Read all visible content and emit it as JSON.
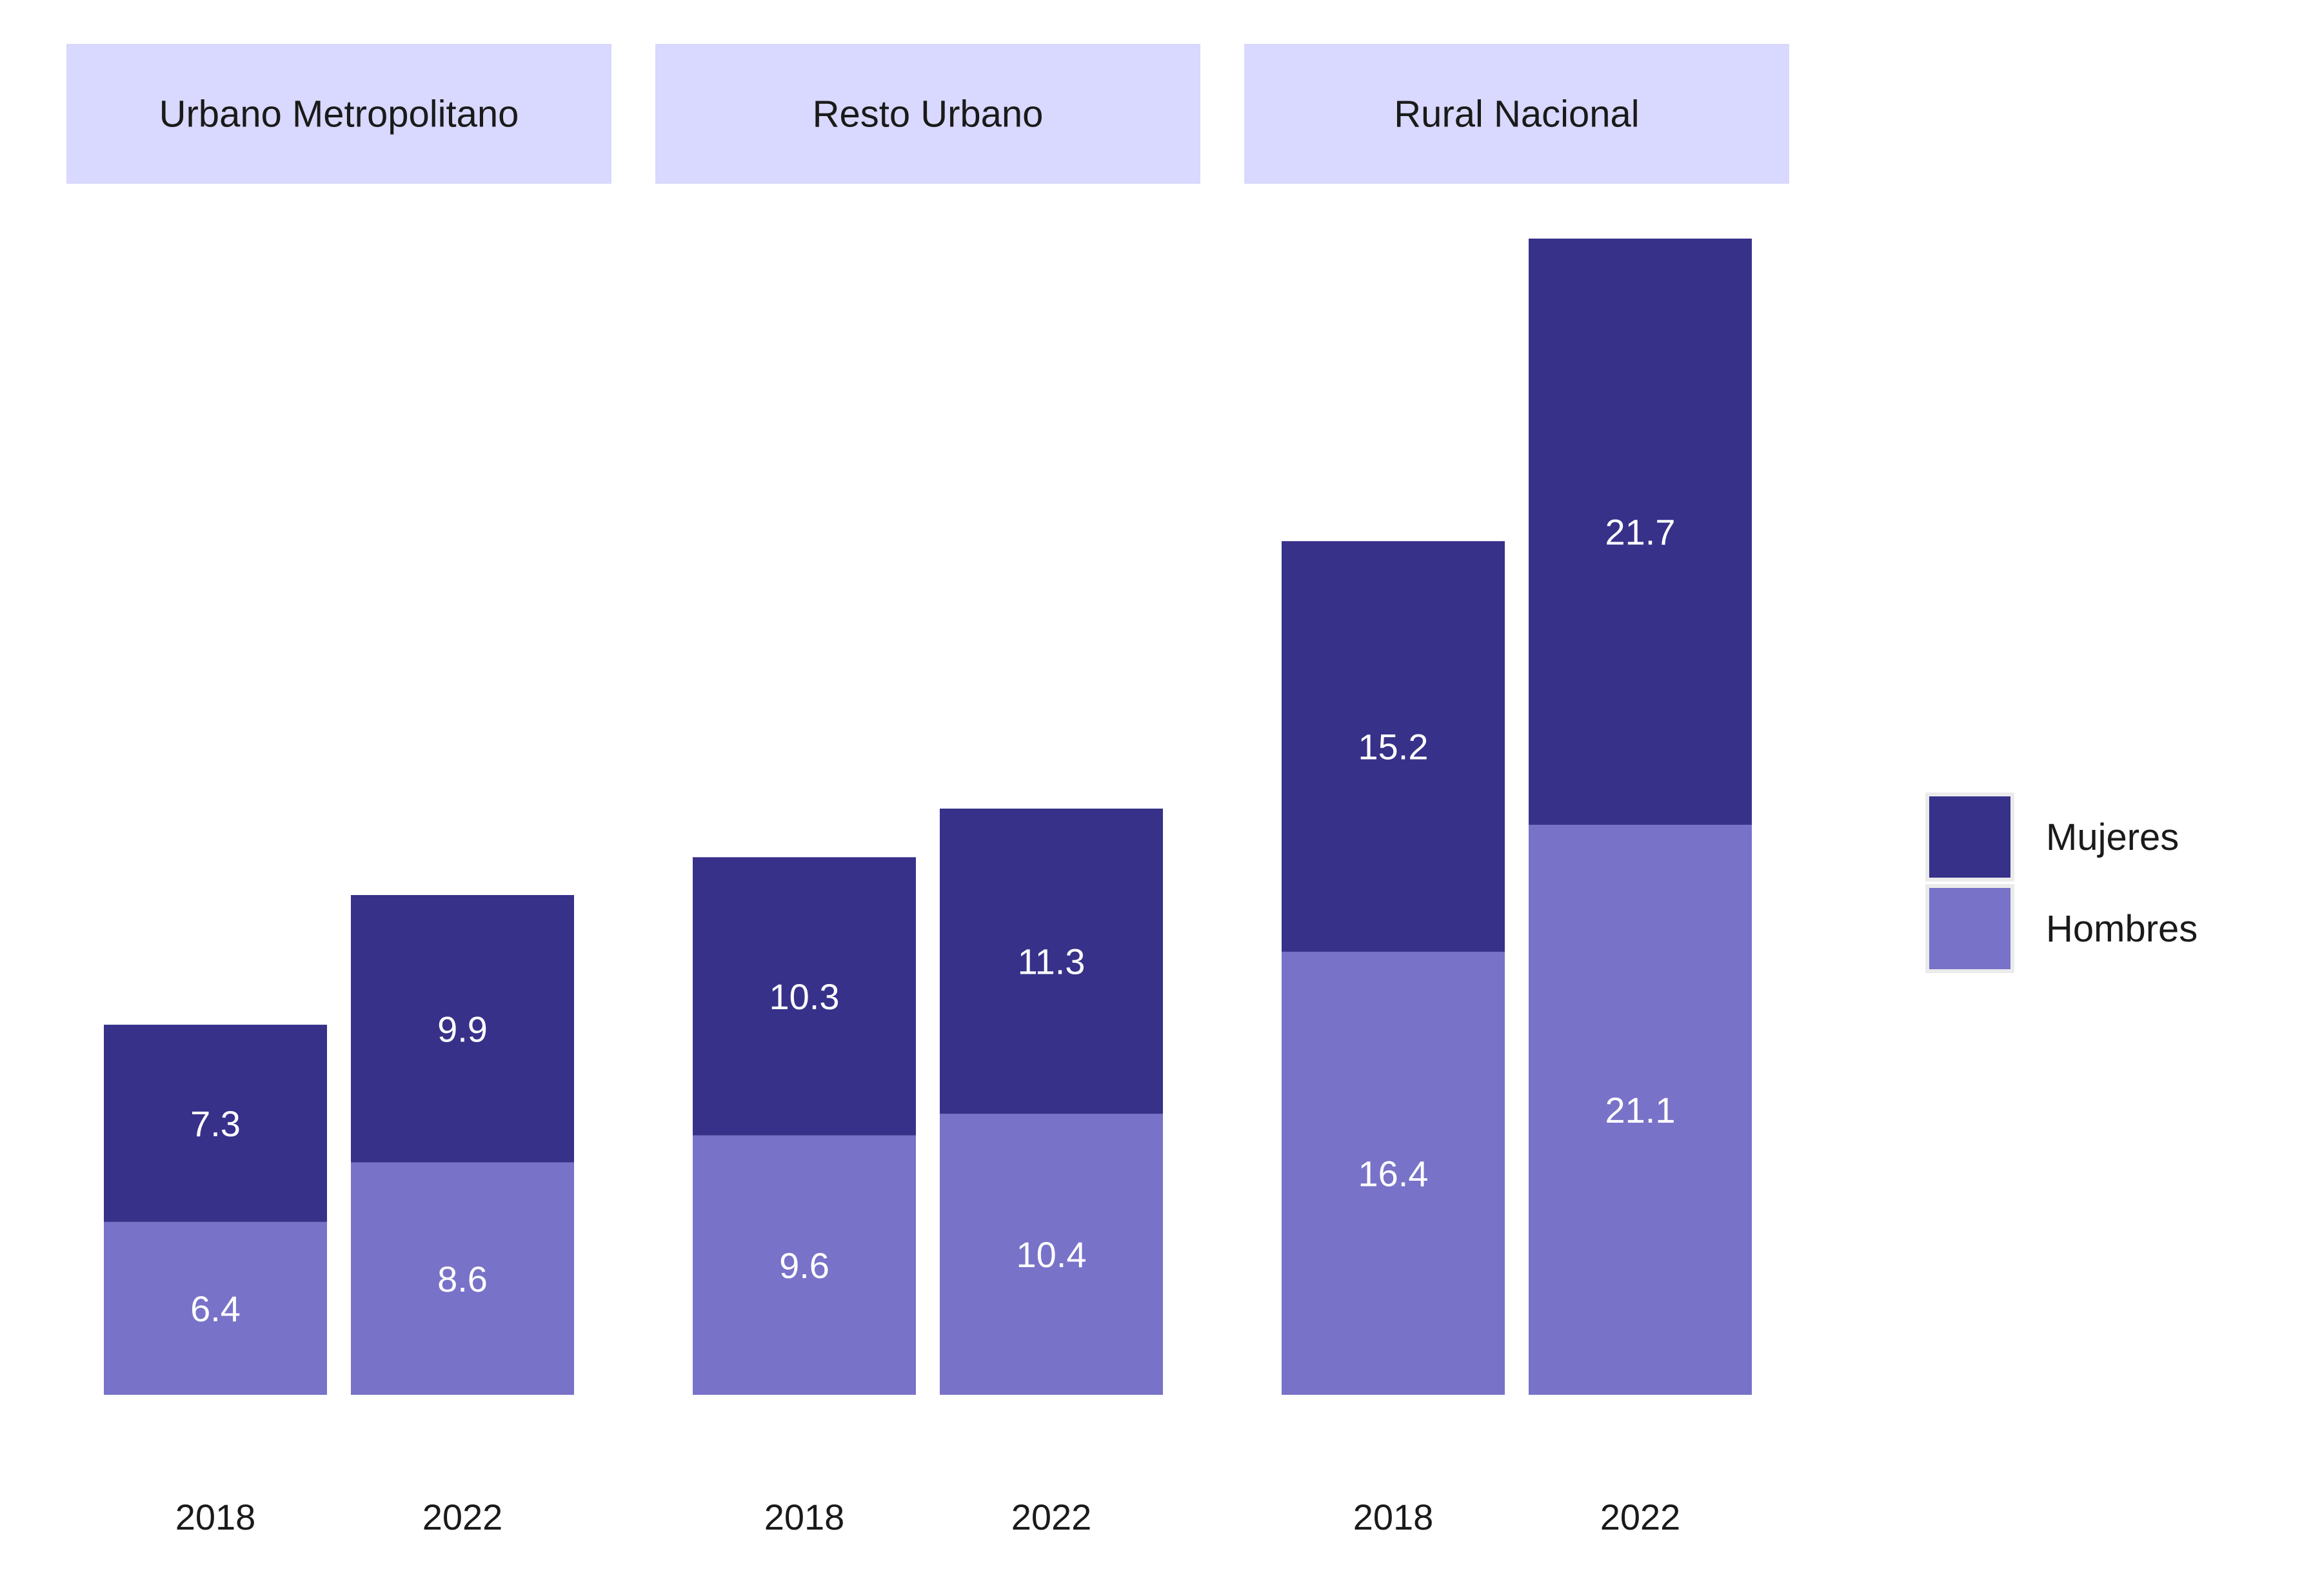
{
  "chart_data": {
    "type": "bar",
    "stacked": true,
    "facets": [
      {
        "label": "Urbano Metropolitano",
        "categories": [
          "2018",
          "2022"
        ],
        "series": [
          {
            "name": "Hombres",
            "values": [
              6.4,
              8.6
            ]
          },
          {
            "name": "Mujeres",
            "values": [
              7.3,
              9.9
            ]
          }
        ]
      },
      {
        "label": "Resto Urbano",
        "categories": [
          "2018",
          "2022"
        ],
        "series": [
          {
            "name": "Hombres",
            "values": [
              9.6,
              10.4
            ]
          },
          {
            "name": "Mujeres",
            "values": [
              10.3,
              11.3
            ]
          }
        ]
      },
      {
        "label": "Rural Nacional",
        "categories": [
          "2018",
          "2022"
        ],
        "series": [
          {
            "name": "Hombres",
            "values": [
              16.4,
              21.1
            ]
          },
          {
            "name": "Mujeres",
            "values": [
              15.2,
              21.7
            ]
          }
        ]
      }
    ],
    "legend": {
      "position": "right",
      "entries": [
        {
          "name": "Mujeres",
          "color": "#37318a"
        },
        {
          "name": "Hombres",
          "color": "#7872c8"
        }
      ]
    },
    "colors": {
      "Mujeres": "#37318a",
      "Hombres": "#7872c8",
      "strip": "#d9d8fe"
    },
    "ylim": [
      0,
      42.8
    ],
    "grid": false
  }
}
